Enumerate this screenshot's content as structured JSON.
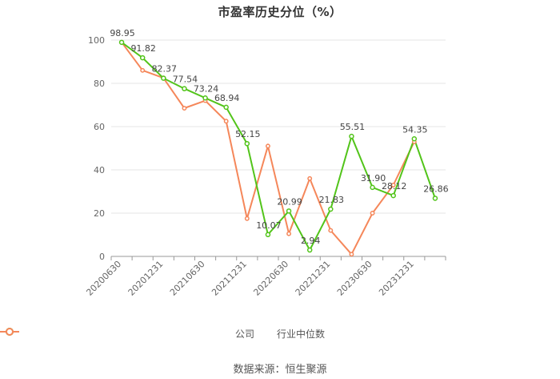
{
  "title": "市盈率历史分位（%）",
  "source": "数据来源：恒生聚源",
  "chart_data": {
    "type": "line",
    "x": [
      "20200630",
      "20200930",
      "20201231",
      "20210331",
      "20210630",
      "20210930",
      "20211231",
      "20220331",
      "20220630",
      "20220930",
      "20221231",
      "20230331",
      "20230630",
      "20230930",
      "20231231",
      "20240331"
    ],
    "x_tick_labels": [
      "20200630",
      "20201231",
      "20210630",
      "20211231",
      "20220630",
      "20221231",
      "20230630",
      "20231231"
    ],
    "ylim": [
      0,
      100
    ],
    "y_ticks": [
      0,
      20,
      40,
      60,
      80,
      100
    ],
    "grid": true,
    "legend_position": "bottom",
    "series": [
      {
        "name": "公司",
        "color": "#52c41a",
        "values": [
          98.95,
          91.82,
          82.37,
          77.54,
          73.24,
          68.94,
          52.15,
          10.07,
          20.99,
          2.94,
          21.83,
          55.51,
          31.9,
          28.12,
          54.35,
          26.86
        ],
        "labels": [
          "98.95",
          "91.82",
          "82.37",
          "77.54",
          "73.24",
          "68.94",
          "52.15",
          "10.07",
          "20.99",
          "2.94",
          "21.83",
          "55.51",
          "31.90",
          "28.12",
          "54.35",
          "26.86"
        ]
      },
      {
        "name": "行业中位数",
        "color": "#f5875a",
        "values": [
          98.95,
          86.0,
          82.5,
          68.5,
          72.0,
          62.5,
          17.5,
          51.0,
          10.5,
          36.0,
          12.0,
          1.0,
          20.0,
          33.0,
          53.0,
          null
        ]
      }
    ]
  }
}
